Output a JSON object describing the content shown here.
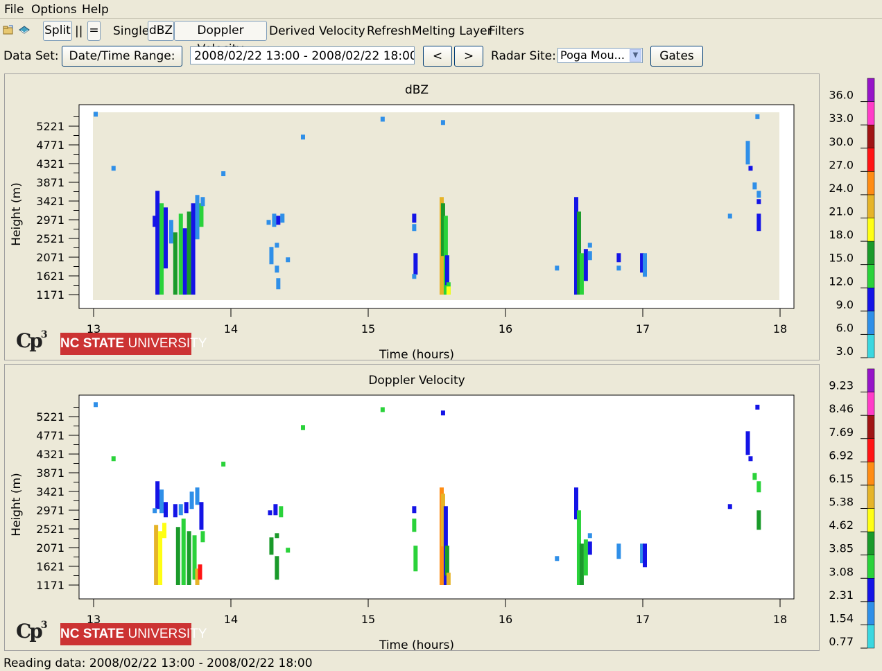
{
  "menubar": {
    "items": [
      "File",
      "Options",
      "Help"
    ]
  },
  "toolbar": {
    "split": "Split",
    "side_by_side": "||",
    "stacked": "=",
    "single": "Single",
    "dbz": "dBZ",
    "doppler": "Doppler Velocity",
    "derived": "Derived Velocity",
    "refresh": "Refresh",
    "melting": "Melting Layer",
    "filters": "Filters"
  },
  "dataset": {
    "label": "Data Set:",
    "range_button": "Date/Time Range:",
    "range_value": "2008/02/22 13:00 - 2008/02/22 18:00",
    "prev": "<",
    "next": ">",
    "site_label": "Radar Site:",
    "site_value": "Poga Mou...",
    "gates": "Gates"
  },
  "axes": {
    "ylabel": "Height (m)",
    "xlabel": "Time (hours)",
    "yticks": [
      "5221",
      "4771",
      "4321",
      "3871",
      "3421",
      "2971",
      "2521",
      "2071",
      "1621",
      "1171"
    ],
    "ytick_values": [
      5221,
      4771,
      4321,
      3871,
      3421,
      2971,
      2521,
      2071,
      1621,
      1171
    ],
    "xticks": [
      "13",
      "14",
      "15",
      "16",
      "17",
      "18"
    ],
    "xtick_values": [
      13,
      14,
      15,
      16,
      17,
      18
    ]
  },
  "colors": {
    "dbz": [
      "#3bd7e0",
      "#2f8fe8",
      "#1414e6",
      "#2ad23a",
      "#1a9a2a",
      "#ffff14",
      "#e6b428",
      "#ff8c14",
      "#ff1414",
      "#a01414",
      "#ff3cc8",
      "#9614c8"
    ],
    "vel": [
      "#3bd7e0",
      "#2f8fe8",
      "#1414e6",
      "#2ad23a",
      "#1a9a2a",
      "#ffff14",
      "#e6b428",
      "#ff8c14",
      "#ff1414",
      "#a01414",
      "#ff3cc8",
      "#9614c8"
    ]
  },
  "dbz_panel": {
    "title": "dBZ",
    "colorbar_labels": [
      "36.0",
      "33.0",
      "30.0",
      "27.0",
      "24.0",
      "21.0",
      "18.0",
      "15.0",
      "12.0",
      "9.0",
      "6.0",
      "3.0"
    ]
  },
  "vel_panel": {
    "title": "Doppler Velocity",
    "colorbar_labels": [
      "9.23",
      "8.46",
      "7.69",
      "6.92",
      "6.15",
      "5.38",
      "4.62",
      "3.85",
      "3.08",
      "2.31",
      "1.54",
      "0.77"
    ]
  },
  "logo": {
    "cp3": "Cp",
    "cp3_sup": "3",
    "ncsu_bold": "NC STATE",
    "ncsu_rest": " UNIVERSITY"
  },
  "status": "Reading data: 2008/02/22 13:00 - 2008/02/22 18:00"
}
